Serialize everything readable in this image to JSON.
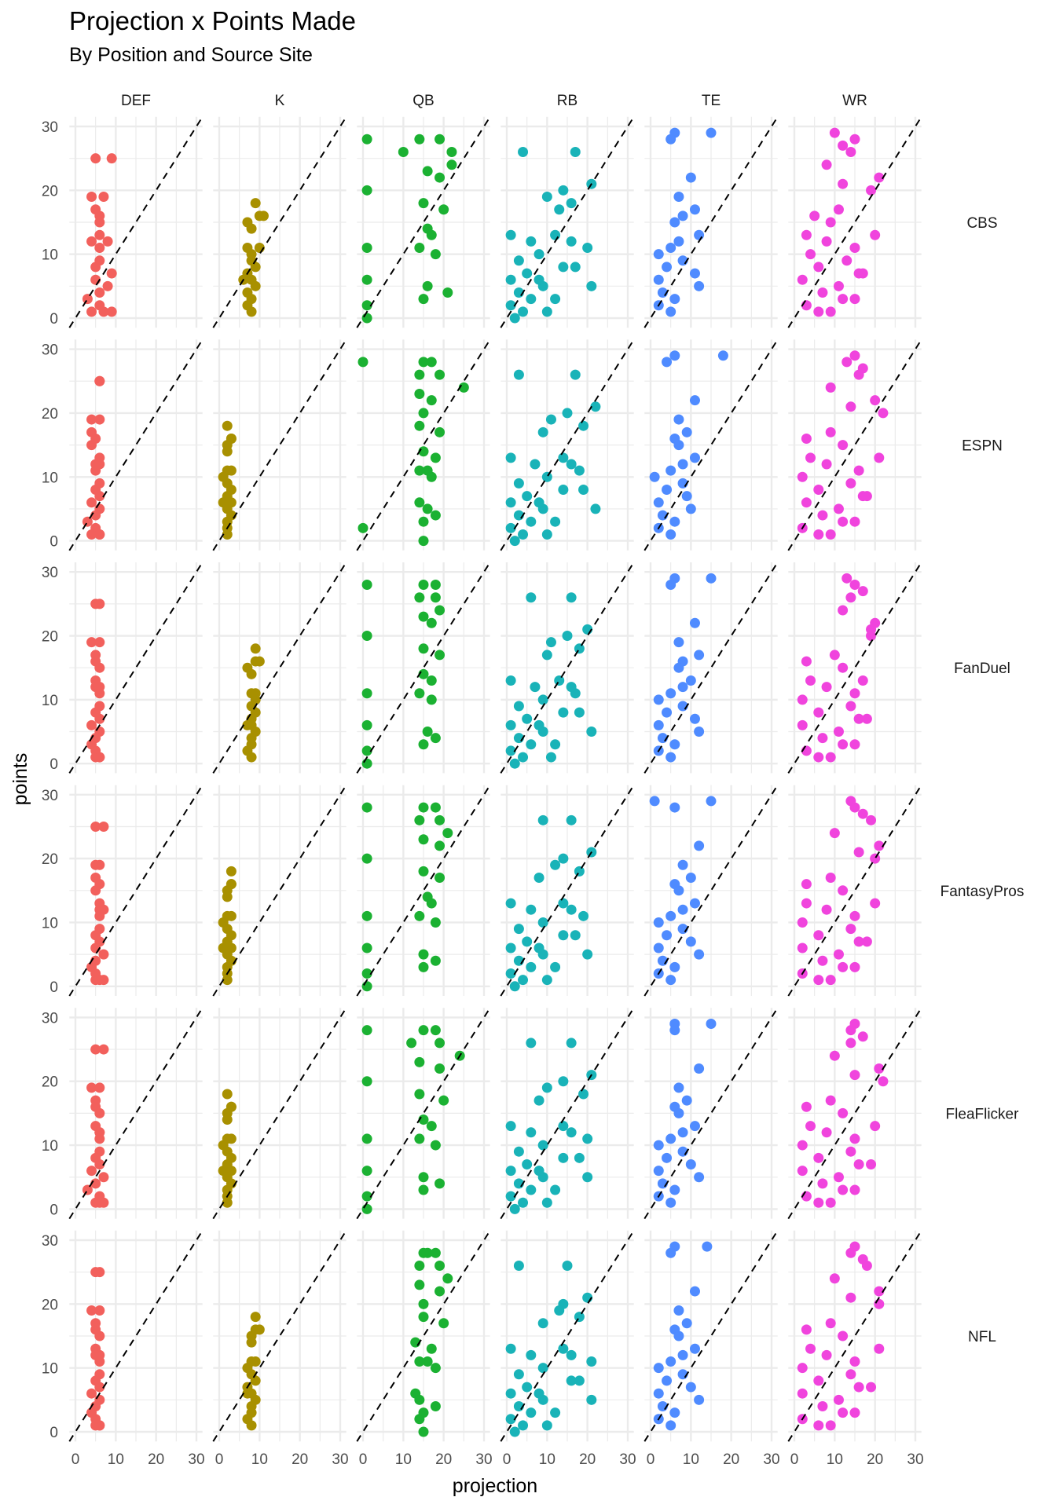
{
  "chart_data": {
    "type": "scatter",
    "title": "Projection x Points Made",
    "subtitle": "By Position and Source Site",
    "xlabel": "projection",
    "ylabel": "points",
    "xlim": [
      0,
      30
    ],
    "ylim": [
      0,
      30
    ],
    "x_ticks": [
      "0",
      "10",
      "20",
      "30"
    ],
    "y_ticks": [
      "0",
      "10",
      "20",
      "30"
    ],
    "grid": true,
    "reference_line": "y = x (dashed)",
    "facet_columns": [
      "DEF",
      "K",
      "QB",
      "RB",
      "TE",
      "WR"
    ],
    "facet_rows": [
      "CBS",
      "ESPN",
      "FanDuel",
      "FantasyPros",
      "FleaFlicker",
      "NFL"
    ],
    "positions": [
      {
        "name": "DEF",
        "color": "#F2605C",
        "points": [
          25,
          25,
          19,
          19,
          17,
          16,
          15,
          13,
          12,
          12,
          11,
          9,
          8,
          7,
          6,
          5,
          4,
          3,
          2,
          1,
          1,
          1
        ],
        "projection": {
          "CBS": [
            5,
            9,
            4,
            7,
            5,
            6,
            6,
            6,
            8,
            4,
            6,
            6,
            5,
            9,
            5,
            8,
            6,
            3,
            6,
            9,
            4,
            7
          ],
          "ESPN": [
            6,
            6,
            4,
            6,
            4,
            5,
            4,
            6,
            6,
            5,
            5,
            6,
            5,
            6,
            4,
            6,
            5,
            3,
            5,
            6,
            4,
            6
          ],
          "FanDuel": [
            5,
            6,
            4,
            6,
            5,
            5,
            6,
            5,
            6,
            5,
            6,
            6,
            5,
            6,
            4,
            6,
            5,
            4,
            5,
            6,
            5,
            6
          ],
          "FantasyPros": [
            5,
            7,
            5,
            6,
            5,
            6,
            5,
            6,
            7,
            6,
            6,
            6,
            5,
            6,
            5,
            7,
            5,
            4,
            5,
            6,
            5,
            7
          ],
          "FleaFlicker": [
            5,
            7,
            4,
            6,
            5,
            5,
            6,
            5,
            6,
            6,
            6,
            6,
            5,
            6,
            4,
            7,
            5,
            3,
            6,
            6,
            5,
            7
          ],
          "NFL": [
            5,
            6,
            4,
            6,
            5,
            5,
            6,
            5,
            6,
            5,
            6,
            6,
            5,
            6,
            4,
            6,
            5,
            4,
            5,
            6,
            5,
            6
          ]
        }
      },
      {
        "name": "K",
        "color": "#A89000",
        "points": [
          18,
          16,
          15,
          14,
          11,
          10,
          9,
          8,
          7,
          6,
          5,
          4,
          3,
          2,
          1,
          16,
          11,
          6
        ],
        "projection": {
          "CBS": [
            9,
            10,
            7,
            8,
            7,
            8,
            8,
            9,
            7,
            8,
            9,
            7,
            8,
            7,
            8,
            11,
            10,
            6
          ],
          "ESPN": [
            2,
            3,
            2,
            2,
            2,
            1,
            2,
            3,
            2,
            3,
            2,
            3,
            2,
            2,
            2,
            3,
            3,
            1
          ],
          "FanDuel": [
            9,
            9,
            7,
            8,
            8,
            9,
            8,
            9,
            8,
            8,
            9,
            8,
            8,
            7,
            8,
            10,
            9,
            7
          ],
          "FantasyPros": [
            3,
            3,
            2,
            2,
            2,
            1,
            2,
            3,
            2,
            3,
            2,
            3,
            2,
            2,
            2,
            3,
            3,
            1
          ],
          "FleaFlicker": [
            2,
            3,
            2,
            2,
            2,
            1,
            2,
            3,
            2,
            3,
            2,
            3,
            2,
            2,
            2,
            3,
            3,
            1
          ],
          "NFL": [
            9,
            10,
            8,
            8,
            8,
            7,
            8,
            9,
            7,
            8,
            9,
            8,
            8,
            7,
            8,
            9,
            9,
            7
          ]
        }
      },
      {
        "name": "QB",
        "color": "#1BB132",
        "points": [
          28,
          28,
          28,
          26,
          26,
          24,
          23,
          22,
          20,
          18,
          17,
          14,
          13,
          11,
          11,
          10,
          6,
          5,
          4,
          3,
          2,
          0
        ],
        "projection": {
          "CBS": [
            1,
            14,
            19,
            10,
            22,
            22,
            16,
            19,
            1,
            15,
            20,
            16,
            17,
            1,
            14,
            18,
            1,
            16,
            21,
            15,
            1,
            1
          ],
          "ESPN": [
            0,
            15,
            17,
            14,
            19,
            25,
            14,
            17,
            15,
            14,
            19,
            15,
            18,
            16,
            14,
            17,
            14,
            16,
            18,
            15,
            0,
            15
          ],
          "FanDuel": [
            1,
            15,
            18,
            14,
            18,
            19,
            15,
            17,
            1,
            15,
            19,
            15,
            17,
            1,
            14,
            17,
            1,
            16,
            18,
            15,
            1,
            1
          ],
          "FantasyPros": [
            1,
            15,
            18,
            14,
            19,
            21,
            15,
            19,
            1,
            15,
            19,
            16,
            17,
            1,
            14,
            18,
            1,
            15,
            18,
            15,
            1,
            1
          ],
          "FleaFlicker": [
            1,
            15,
            18,
            12,
            19,
            24,
            14,
            19,
            1,
            14,
            20,
            15,
            17,
            1,
            14,
            18,
            1,
            15,
            19,
            15,
            1,
            1
          ],
          "NFL": [
            16,
            15,
            18,
            14,
            19,
            21,
            14,
            19,
            15,
            15,
            20,
            13,
            17,
            16,
            14,
            18,
            13,
            14,
            18,
            15,
            14,
            15
          ]
        }
      },
      {
        "name": "RB",
        "color": "#19B3B8",
        "points": [
          26,
          26,
          21,
          20,
          19,
          18,
          17,
          13,
          13,
          12,
          11,
          10,
          9,
          8,
          8,
          7,
          6,
          5,
          5,
          4,
          3,
          3,
          2,
          1,
          1,
          0,
          12,
          6
        ],
        "projection": {
          "CBS": [
            4,
            17,
            21,
            14,
            10,
            16,
            13,
            1,
            12,
            6,
            20,
            8,
            3,
            14,
            17,
            5,
            1,
            9,
            21,
            3,
            12,
            6,
            1,
            4,
            10,
            2,
            16,
            8
          ],
          "ESPN": [
            3,
            17,
            22,
            15,
            11,
            19,
            9,
            1,
            14,
            7,
            18,
            10,
            3,
            14,
            19,
            5,
            1,
            9,
            22,
            3,
            12,
            6,
            1,
            4,
            10,
            2,
            16,
            8
          ],
          "FanDuel": [
            6,
            16,
            20,
            15,
            11,
            18,
            10,
            1,
            13,
            7,
            17,
            9,
            3,
            14,
            18,
            5,
            1,
            9,
            21,
            3,
            12,
            6,
            1,
            4,
            11,
            2,
            16,
            8
          ],
          "FantasyPros": [
            9,
            16,
            21,
            14,
            12,
            18,
            8,
            1,
            14,
            6,
            19,
            9,
            3,
            14,
            17,
            5,
            1,
            9,
            20,
            3,
            12,
            6,
            1,
            4,
            10,
            2,
            16,
            8
          ],
          "FleaFlicker": [
            6,
            16,
            21,
            14,
            10,
            19,
            8,
            1,
            14,
            6,
            20,
            9,
            3,
            14,
            18,
            5,
            1,
            9,
            20,
            3,
            12,
            6,
            1,
            4,
            10,
            2,
            16,
            8
          ],
          "NFL": [
            3,
            15,
            20,
            14,
            13,
            18,
            9,
            1,
            14,
            6,
            21,
            9,
            3,
            16,
            18,
            5,
            1,
            9,
            21,
            3,
            12,
            6,
            1,
            4,
            10,
            2,
            16,
            8
          ]
        }
      },
      {
        "name": "TE",
        "color": "#4F8BFF",
        "points": [
          29,
          29,
          28,
          22,
          19,
          17,
          16,
          15,
          13,
          12,
          11,
          10,
          9,
          8,
          7,
          6,
          5,
          4,
          3,
          2,
          1
        ],
        "projection": {
          "CBS": [
            6,
            15,
            5,
            10,
            7,
            11,
            8,
            6,
            12,
            7,
            5,
            2,
            8,
            4,
            11,
            2,
            12,
            3,
            6,
            2,
            5
          ],
          "ESPN": [
            6,
            18,
            4,
            11,
            7,
            9,
            6,
            7,
            11,
            8,
            5,
            1,
            8,
            4,
            9,
            2,
            10,
            3,
            6,
            2,
            5
          ],
          "FanDuel": [
            6,
            15,
            5,
            11,
            7,
            12,
            8,
            7,
            10,
            8,
            5,
            2,
            8,
            4,
            11,
            2,
            12,
            3,
            6,
            2,
            5
          ],
          "FantasyPros": [
            1,
            15,
            6,
            12,
            8,
            10,
            6,
            7,
            11,
            8,
            5,
            2,
            8,
            4,
            10,
            2,
            12,
            3,
            6,
            2,
            5
          ],
          "FleaFlicker": [
            6,
            15,
            6,
            12,
            7,
            9,
            6,
            7,
            11,
            8,
            5,
            2,
            8,
            4,
            10,
            2,
            12,
            3,
            6,
            2,
            5
          ],
          "NFL": [
            6,
            14,
            5,
            11,
            7,
            9,
            6,
            7,
            11,
            8,
            5,
            2,
            8,
            4,
            10,
            2,
            12,
            3,
            6,
            2,
            5
          ]
        }
      },
      {
        "name": "WR",
        "color": "#F044DD",
        "points": [
          29,
          28,
          27,
          26,
          24,
          22,
          21,
          20,
          17,
          16,
          15,
          13,
          13,
          12,
          11,
          10,
          9,
          8,
          7,
          6,
          5,
          4,
          3,
          2,
          1,
          1,
          7,
          3
        ],
        "projection": {
          "CBS": [
            10,
            15,
            12,
            14,
            8,
            21,
            12,
            19,
            11,
            5,
            9,
            3,
            20,
            8,
            15,
            4,
            13,
            6,
            17,
            2,
            11,
            7,
            15,
            3,
            6,
            9,
            16,
            12
          ],
          "ESPN": [
            15,
            13,
            17,
            16,
            9,
            20,
            14,
            22,
            9,
            3,
            12,
            4,
            21,
            8,
            16,
            2,
            14,
            6,
            18,
            3,
            11,
            7,
            15,
            2,
            6,
            9,
            17,
            12
          ],
          "FanDuel": [
            13,
            15,
            17,
            14,
            12,
            20,
            19,
            19,
            10,
            3,
            12,
            4,
            17,
            8,
            15,
            2,
            14,
            6,
            18,
            2,
            11,
            7,
            15,
            3,
            6,
            9,
            16,
            12
          ],
          "FantasyPros": [
            14,
            15,
            17,
            19,
            10,
            21,
            16,
            20,
            9,
            3,
            12,
            3,
            20,
            8,
            15,
            2,
            14,
            6,
            18,
            2,
            11,
            7,
            15,
            2,
            6,
            9,
            16,
            12
          ],
          "FleaFlicker": [
            15,
            14,
            17,
            14,
            10,
            21,
            15,
            22,
            9,
            3,
            12,
            4,
            20,
            8,
            15,
            2,
            14,
            6,
            19,
            2,
            11,
            7,
            15,
            3,
            6,
            9,
            16,
            12
          ],
          "NFL": [
            15,
            14,
            17,
            18,
            10,
            21,
            14,
            21,
            9,
            3,
            12,
            4,
            21,
            8,
            15,
            2,
            14,
            6,
            19,
            2,
            11,
            7,
            15,
            2,
            6,
            9,
            16,
            12
          ]
        }
      }
    ]
  }
}
